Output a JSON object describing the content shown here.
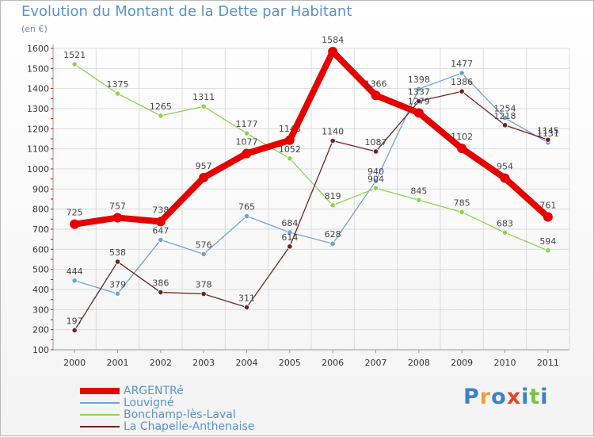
{
  "chart_data": {
    "type": "line",
    "title": "Evolution du Montant de la Dette par Habitant",
    "subtitle": "(en €)",
    "categories": [
      "2000",
      "2001",
      "2002",
      "2003",
      "2004",
      "2005",
      "2006",
      "2007",
      "2008",
      "2009",
      "2010",
      "2011"
    ],
    "ylim": [
      100,
      1600
    ],
    "yticks": [
      100,
      200,
      300,
      400,
      500,
      600,
      700,
      800,
      900,
      1000,
      1100,
      1200,
      1300,
      1400,
      1500,
      1600
    ],
    "grid": true,
    "legend_position": "bottom-left",
    "series": [
      {
        "name": "ARGENTRé",
        "color": "#e60000",
        "values": [
          725,
          757,
          738,
          957,
          1077,
          1143,
          1584,
          1366,
          1279,
          1102,
          954,
          761
        ]
      },
      {
        "name": "Louvigné",
        "color": "#6fa3d3",
        "values": [
          444,
          379,
          647,
          576,
          765,
          684,
          628,
          940,
          1398,
          1477,
          1254,
          1131
        ]
      },
      {
        "name": "Bonchamp-lès-Laval",
        "color": "#8fd14f",
        "values": [
          1521,
          1375,
          1265,
          1311,
          1177,
          1052,
          819,
          904,
          845,
          785,
          683,
          594
        ]
      },
      {
        "name": "La Chapelle-Anthenaise",
        "color": "#6b2424",
        "values": [
          197,
          538,
          386,
          378,
          311,
          614,
          1140,
          1087,
          1337,
          1386,
          1218,
          1145
        ]
      }
    ]
  },
  "logo": {
    "text": "Proxiti",
    "letters": [
      {
        "ch": "P",
        "color": "#3b82c4"
      },
      {
        "ch": "r",
        "color": "#e8a23a"
      },
      {
        "ch": "o",
        "color": "#3b82c4"
      },
      {
        "ch": "x",
        "color": "#e04a2a"
      },
      {
        "ch": "i",
        "color": "#3b82c4"
      },
      {
        "ch": "t",
        "color": "#7cc242"
      },
      {
        "ch": "i",
        "color": "#3b82c4"
      }
    ]
  }
}
